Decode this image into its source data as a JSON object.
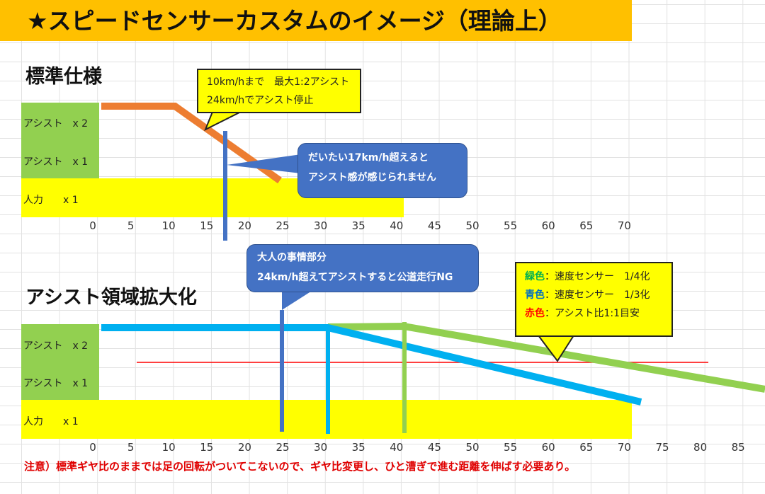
{
  "title": "★スピードセンサーカスタムのイメージ（理論上）",
  "standard": {
    "heading": "標準仕様",
    "rows": [
      "アシスト　x 2",
      "アシスト　x 1",
      "人力　　x 1"
    ],
    "ticks": [
      "0",
      "5",
      "10",
      "15",
      "20",
      "25",
      "30",
      "35",
      "40",
      "45",
      "50",
      "55",
      "60",
      "65",
      "70"
    ],
    "callout1": [
      "10km/hまで　最大1:2アシスト",
      "24km/hでアシスト停止"
    ],
    "callout2": [
      "だいたい17km/h超えると",
      "アシスト感が感じられません"
    ]
  },
  "extended": {
    "heading": "アシスト領域拡大化",
    "rows": [
      "アシスト　x 2",
      "アシスト　x 1",
      "人力　　x 1"
    ],
    "ticks": [
      "0",
      "5",
      "10",
      "15",
      "20",
      "25",
      "30",
      "35",
      "40",
      "45",
      "50",
      "55",
      "60",
      "65",
      "70",
      "75",
      "80",
      "85"
    ],
    "callout": [
      "大人の事情部分",
      "24km/h超えてアシストすると公道走行NG"
    ],
    "legend": [
      {
        "key": "緑色",
        "text": "：速度センサー　1/4化",
        "color": "#00b050"
      },
      {
        "key": "青色",
        "text": "：速度センサー　1/3化",
        "color": "#0070c0"
      },
      {
        "key": "赤色",
        "text": "：アシスト比1:1目安",
        "color": "#ff0000"
      }
    ]
  },
  "note": "注意）標準ギヤ比のままでは足の回転がついてこないので、ギヤ比変更し、ひと漕ぎで進む距離を伸ばす必要あり。",
  "colors": {
    "orange": "#ed7d31",
    "cyan": "#00b0f0",
    "lime": "#92d050",
    "blue": "#4472c4",
    "red": "#ff0000"
  }
}
